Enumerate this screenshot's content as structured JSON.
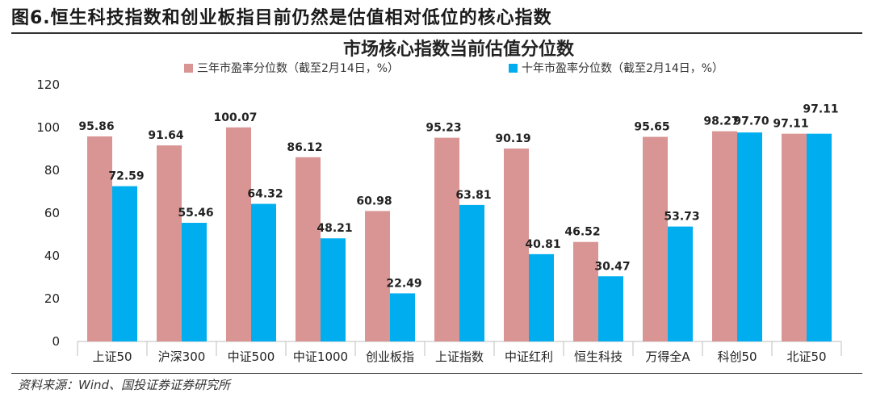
{
  "figure_title": "图6.恒生科技指数和创业板指目前仍然是估值相对低位的核心指数",
  "source": "资料来源：Wind、国投证券证券研究所",
  "chart_data": {
    "type": "bar",
    "title": "市场核心指数当前估值分位数",
    "categories": [
      "上证50",
      "沪深300",
      "中证500",
      "中证1000",
      "创业板指",
      "上证指数",
      "中证红利",
      "恒生科技",
      "万得全A",
      "科创50",
      "北证50"
    ],
    "series": [
      {
        "name": "三年市盈率分位数（截至2月14日，%）",
        "color": "#d99594",
        "values": [
          95.86,
          91.64,
          100.07,
          86.12,
          60.98,
          95.23,
          90.19,
          46.52,
          95.65,
          98.27,
          97.11
        ],
        "labels": [
          "95.86",
          "91.64",
          "100.07",
          "86.12",
          "60.98",
          "95.23",
          "90.19",
          "46.52",
          "95.65",
          "98.27",
          "97.11"
        ]
      },
      {
        "name": "十年市盈率分位数（截至2月14日，%）",
        "color": "#00aeef",
        "values": [
          72.59,
          55.46,
          64.32,
          48.21,
          22.49,
          63.81,
          40.81,
          30.47,
          53.73,
          97.7,
          97.11
        ],
        "labels": [
          "72.59",
          "55.46",
          "64.32",
          "48.21",
          "22.49",
          "63.81",
          "40.81",
          "30.47",
          "53.73",
          "97.70",
          "97.11"
        ]
      }
    ],
    "ylim": [
      0,
      120
    ],
    "yticks": [
      "0",
      "20",
      "40",
      "60",
      "80",
      "100",
      "120"
    ],
    "grid": false,
    "legend": "top"
  }
}
